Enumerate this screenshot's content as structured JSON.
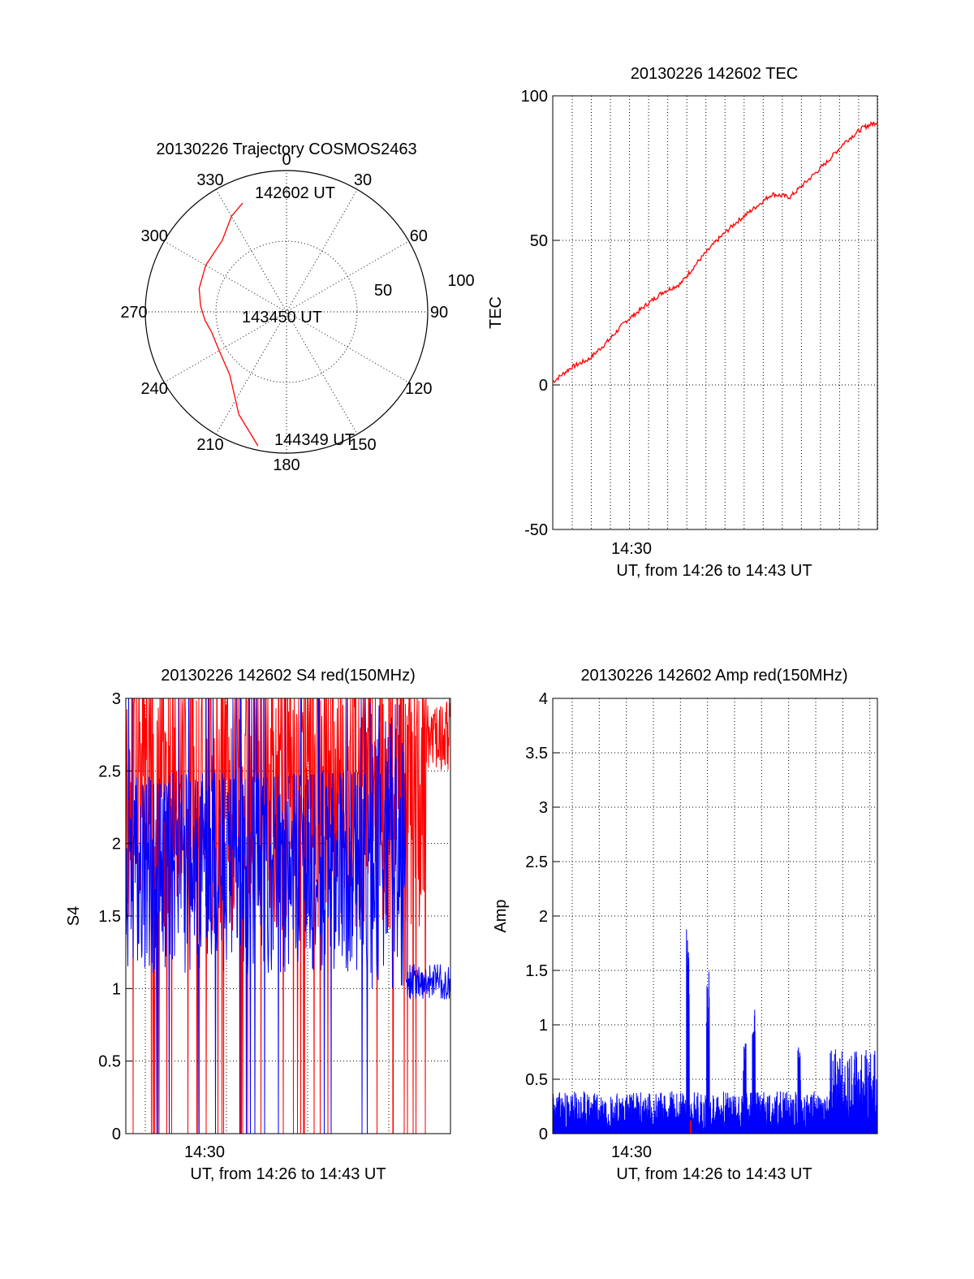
{
  "colors": {
    "red": "#ff0000",
    "blue": "#0000ff",
    "axis": "#000000",
    "grid": "#000000"
  },
  "chart_data": [
    {
      "type": "polar",
      "title": "20130226 Trajectory COSMOS2463",
      "angle_labels": [
        "0",
        "30",
        "60",
        "90",
        "120",
        "150",
        "180",
        "210",
        "240",
        "270",
        "300",
        "330"
      ],
      "radial_labels": [
        "50",
        "100"
      ],
      "radial_range": [
        0,
        100
      ],
      "grid": true,
      "annotations": [
        "142602 UT",
        "143450 UT",
        "144349 UT"
      ],
      "trajectory_note": "azimuth_deg / zenith distance",
      "series": [
        {
          "color": "red",
          "azimuth": [
            338,
            330,
            318,
            300,
            285,
            274,
            264,
            255,
            240,
            222,
            205,
            192
          ],
          "radius": [
            83,
            78,
            68,
            66,
            64,
            61,
            58,
            55,
            55,
            60,
            80,
            97
          ]
        }
      ]
    },
    {
      "type": "line",
      "title": "20130226 142602 TEC",
      "ylabel": "TEC",
      "xlabel": "UT, from 14:26 to 14:43 UT",
      "x_tick_label": "14:30",
      "y_ticks": [
        "100",
        "50",
        "0",
        "-50"
      ],
      "ylim": [
        -50,
        100
      ],
      "xlim_minutes": [
        0,
        17.78
      ],
      "grid": "dotted",
      "series": [
        {
          "color": "red",
          "x": [
            0,
            1,
            2,
            3,
            4,
            5,
            6,
            7,
            8,
            9,
            10,
            11,
            12,
            13,
            14,
            15,
            16,
            17,
            17.78
          ],
          "y": [
            1,
            6,
            9,
            15,
            22,
            27,
            32,
            35,
            43,
            50,
            56,
            61,
            66,
            65,
            71,
            77,
            84,
            89,
            91
          ]
        }
      ]
    },
    {
      "type": "line",
      "title": "20130226 142602 S4 red(150MHz)",
      "ylabel": "S4",
      "xlabel": "UT, from 14:26 to 14:43 UT",
      "x_tick_label": "14:30",
      "y_ticks": [
        "3",
        "2.5",
        "2",
        "1.5",
        "1",
        "0.5",
        "0"
      ],
      "ylim": [
        0,
        3
      ],
      "grid": "dotted",
      "series": [
        {
          "color": "red",
          "note": "noisy, many spikes to 0 and 3",
          "mean_level": 2.2
        },
        {
          "color": "blue",
          "note": "noisy, settles near 1.05 after 14:41",
          "mean_level": 1.8,
          "final_level": 1.05
        }
      ]
    },
    {
      "type": "line",
      "title": "20130226 142602 Amp red(150MHz)",
      "ylabel": "Amp",
      "xlabel": "UT, from 14:26 to 14:43 UT",
      "x_tick_label": "14:30",
      "y_ticks": [
        "4",
        "3.5",
        "3",
        "2.5",
        "2",
        "1.5",
        "1",
        "0.5",
        "0"
      ],
      "ylim": [
        0,
        4
      ],
      "grid": "dotted",
      "series": [
        {
          "color": "blue",
          "baseline": 0.3,
          "peaks_minutes": [
            7.4,
            8.5,
            10.5,
            11.0,
            13.5
          ],
          "peak_values": [
            2.1,
            1.5,
            0.85,
            1.15,
            0.8
          ],
          "final_level": 0.6
        }
      ]
    }
  ]
}
